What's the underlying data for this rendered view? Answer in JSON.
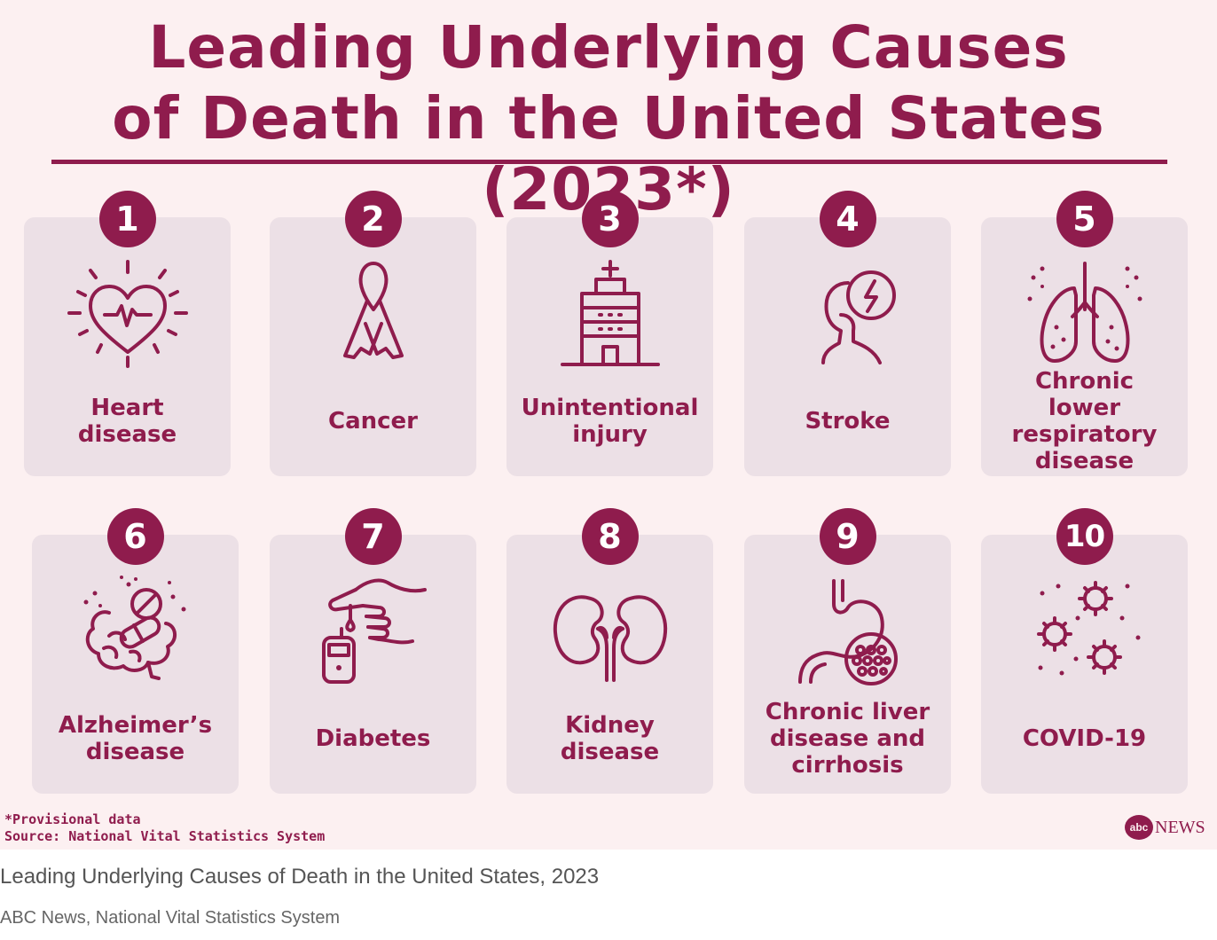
{
  "infographic": {
    "title_line1": "Leading Underlying Causes",
    "title_line2": "of Death in the United States (2023*)",
    "accent_color": "#8f1c4d",
    "background_color": "#fcf0f1",
    "card_color": "#ece0e6",
    "causes": [
      {
        "rank": "1",
        "label": "Heart disease",
        "icon": "heart-icon"
      },
      {
        "rank": "2",
        "label": "Cancer",
        "icon": "awareness-ribbon-icon"
      },
      {
        "rank": "3",
        "label": "Unintentional injury",
        "icon": "hospital-icon"
      },
      {
        "rank": "4",
        "label": "Stroke",
        "icon": "head-lightning-icon"
      },
      {
        "rank": "5",
        "label": "Chronic lower respiratory disease",
        "icon": "lungs-icon"
      },
      {
        "rank": "6",
        "label": "Alzheimer’s disease",
        "icon": "brain-pills-icon"
      },
      {
        "rank": "7",
        "label": "Diabetes",
        "icon": "glucose-meter-icon"
      },
      {
        "rank": "8",
        "label": "Kidney disease",
        "icon": "kidneys-icon"
      },
      {
        "rank": "9",
        "label": "Chronic liver disease and cirrhosis",
        "icon": "stomach-liver-icon"
      },
      {
        "rank": "10",
        "label": "COVID-19",
        "icon": "virus-icon"
      }
    ],
    "footnote": "*Provisional data",
    "source": "Source: National Vital Statistics System",
    "logo": {
      "circle_text": "abc",
      "text": "NEWS"
    }
  },
  "caption": "Leading Underlying Causes of Death in the United States, 2023",
  "credit": "ABC News, National Vital Statistics System"
}
